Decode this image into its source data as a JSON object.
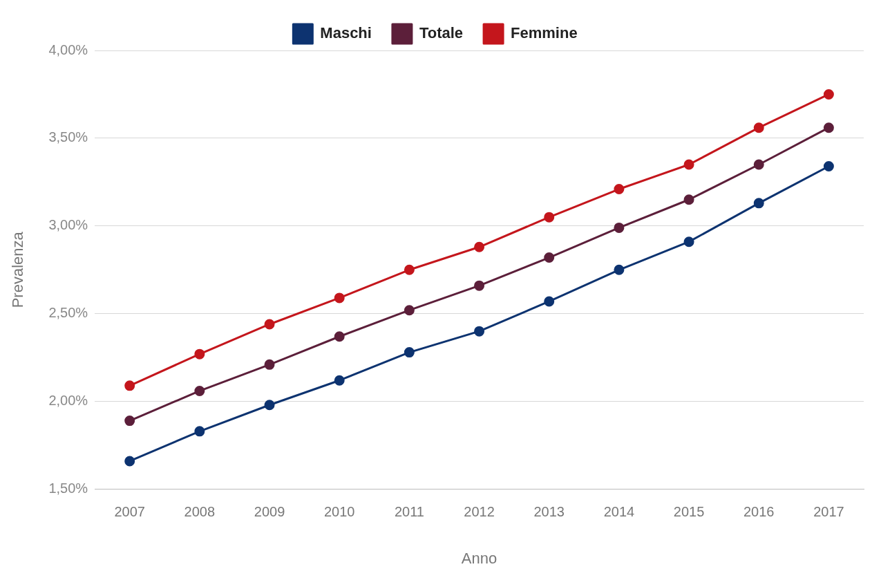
{
  "chart_data": {
    "type": "line",
    "xlabel": "Anno",
    "ylabel": "Prevalenza",
    "categories": [
      "2007",
      "2008",
      "2009",
      "2010",
      "2011",
      "2012",
      "2013",
      "2014",
      "2015",
      "2016",
      "2017"
    ],
    "series": [
      {
        "name": "Maschi",
        "color": "#0d3370",
        "values": [
          1.66,
          1.83,
          1.98,
          2.12,
          2.28,
          2.4,
          2.57,
          2.75,
          2.91,
          3.13,
          3.34
        ]
      },
      {
        "name": "Totale",
        "color": "#5c1f3a",
        "values": [
          1.89,
          2.06,
          2.21,
          2.37,
          2.52,
          2.66,
          2.82,
          2.99,
          3.15,
          3.35,
          3.56
        ]
      },
      {
        "name": "Femmine",
        "color": "#c4161c",
        "values": [
          2.09,
          2.27,
          2.44,
          2.59,
          2.75,
          2.88,
          3.05,
          3.21,
          3.35,
          3.56,
          3.75
        ]
      }
    ],
    "ylim": [
      1.5,
      4.0
    ],
    "yticks": [
      {
        "value": 1.5,
        "label": "1,50%"
      },
      {
        "value": 2.0,
        "label": "2,00%"
      },
      {
        "value": 2.5,
        "label": "2,50%"
      },
      {
        "value": 3.0,
        "label": "3,00%"
      },
      {
        "value": 3.5,
        "label": "3,50%"
      },
      {
        "value": 4.0,
        "label": "4,00%"
      }
    ],
    "grid": "y",
    "legend": "top",
    "marker": "circle",
    "line_style": "solid"
  }
}
